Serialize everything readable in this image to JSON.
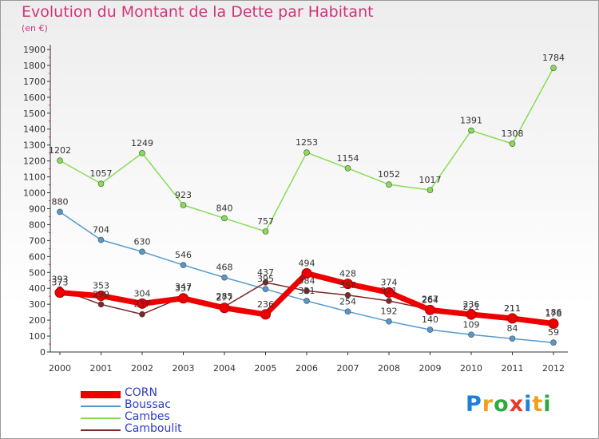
{
  "chart_data": {
    "type": "line",
    "title": "Evolution du Montant de la Dette par Habitant",
    "subtitle": "(en €)",
    "x": [
      "2000",
      "2001",
      "2002",
      "2003",
      "2004",
      "2005",
      "2006",
      "2007",
      "2008",
      "2009",
      "2010",
      "2011",
      "2012"
    ],
    "yticks": [
      "0",
      "100",
      "200",
      "300",
      "400",
      "500",
      "600",
      "700",
      "800",
      "900",
      "1000",
      "1100",
      "1200",
      "1300",
      "1400",
      "1500",
      "1600",
      "1700",
      "1800",
      "1900"
    ],
    "ylim": [
      0,
      1900
    ],
    "grid": false,
    "legend_position": "bottom-left",
    "series": [
      {
        "name": "Cambes",
        "color": "#88dd55",
        "values": [
          1202,
          1057,
          1249,
          923,
          840,
          757,
          1253,
          1154,
          1052,
          1017,
          1391,
          1308,
          1784
        ],
        "labels": [
          "1202",
          "1057",
          "1249",
          "923",
          "840",
          "757",
          "1253",
          "1154",
          "1052",
          "1017",
          "1391",
          "1308",
          "1784"
        ]
      },
      {
        "name": "Boussac",
        "color": "#5599cc",
        "values": [
          880,
          704,
          630,
          546,
          468,
          395,
          321,
          254,
          192,
          140,
          109,
          84,
          59
        ],
        "labels": [
          "880",
          "704",
          "630",
          "546",
          "468",
          "395",
          "321",
          "254",
          "192",
          "140",
          "109",
          "84",
          "59"
        ]
      },
      {
        "name": "Camboulit",
        "color": "#7a2a2a",
        "values": [
          393,
          299,
          237,
          347,
          285,
          437,
          384,
          357,
          321,
          267,
          221,
          211,
          186
        ],
        "labels": [
          "393",
          "299",
          "237",
          "347",
          "285",
          "437",
          "384",
          "357",
          "321",
          "267",
          "221",
          "211",
          "186"
        ]
      },
      {
        "name": "CORN",
        "color": "#ee0000",
        "values": [
          373,
          353,
          304,
          337,
          277,
          236,
          494,
          428,
          374,
          264,
          236,
          211,
          178
        ],
        "labels": [
          "373",
          "353",
          "304",
          "337",
          "277",
          "236",
          "494",
          "428",
          "374",
          "264",
          "236",
          "211",
          "178"
        ]
      }
    ]
  },
  "legend": [
    {
      "label": "CORN",
      "color": "#ee0000",
      "width": 9
    },
    {
      "label": "Boussac",
      "color": "#5599cc",
      "width": 2
    },
    {
      "label": "Cambes",
      "color": "#88dd55",
      "width": 2
    },
    {
      "label": "Camboulit",
      "color": "#7a2a2a",
      "width": 2
    }
  ],
  "brand": {
    "text": "Proxiti",
    "colors": [
      "#1f7fd6",
      "#f0a020",
      "#2eaa40",
      "#e63a2a",
      "#1f7fd6",
      "#f0a020",
      "#2eaa40"
    ]
  }
}
